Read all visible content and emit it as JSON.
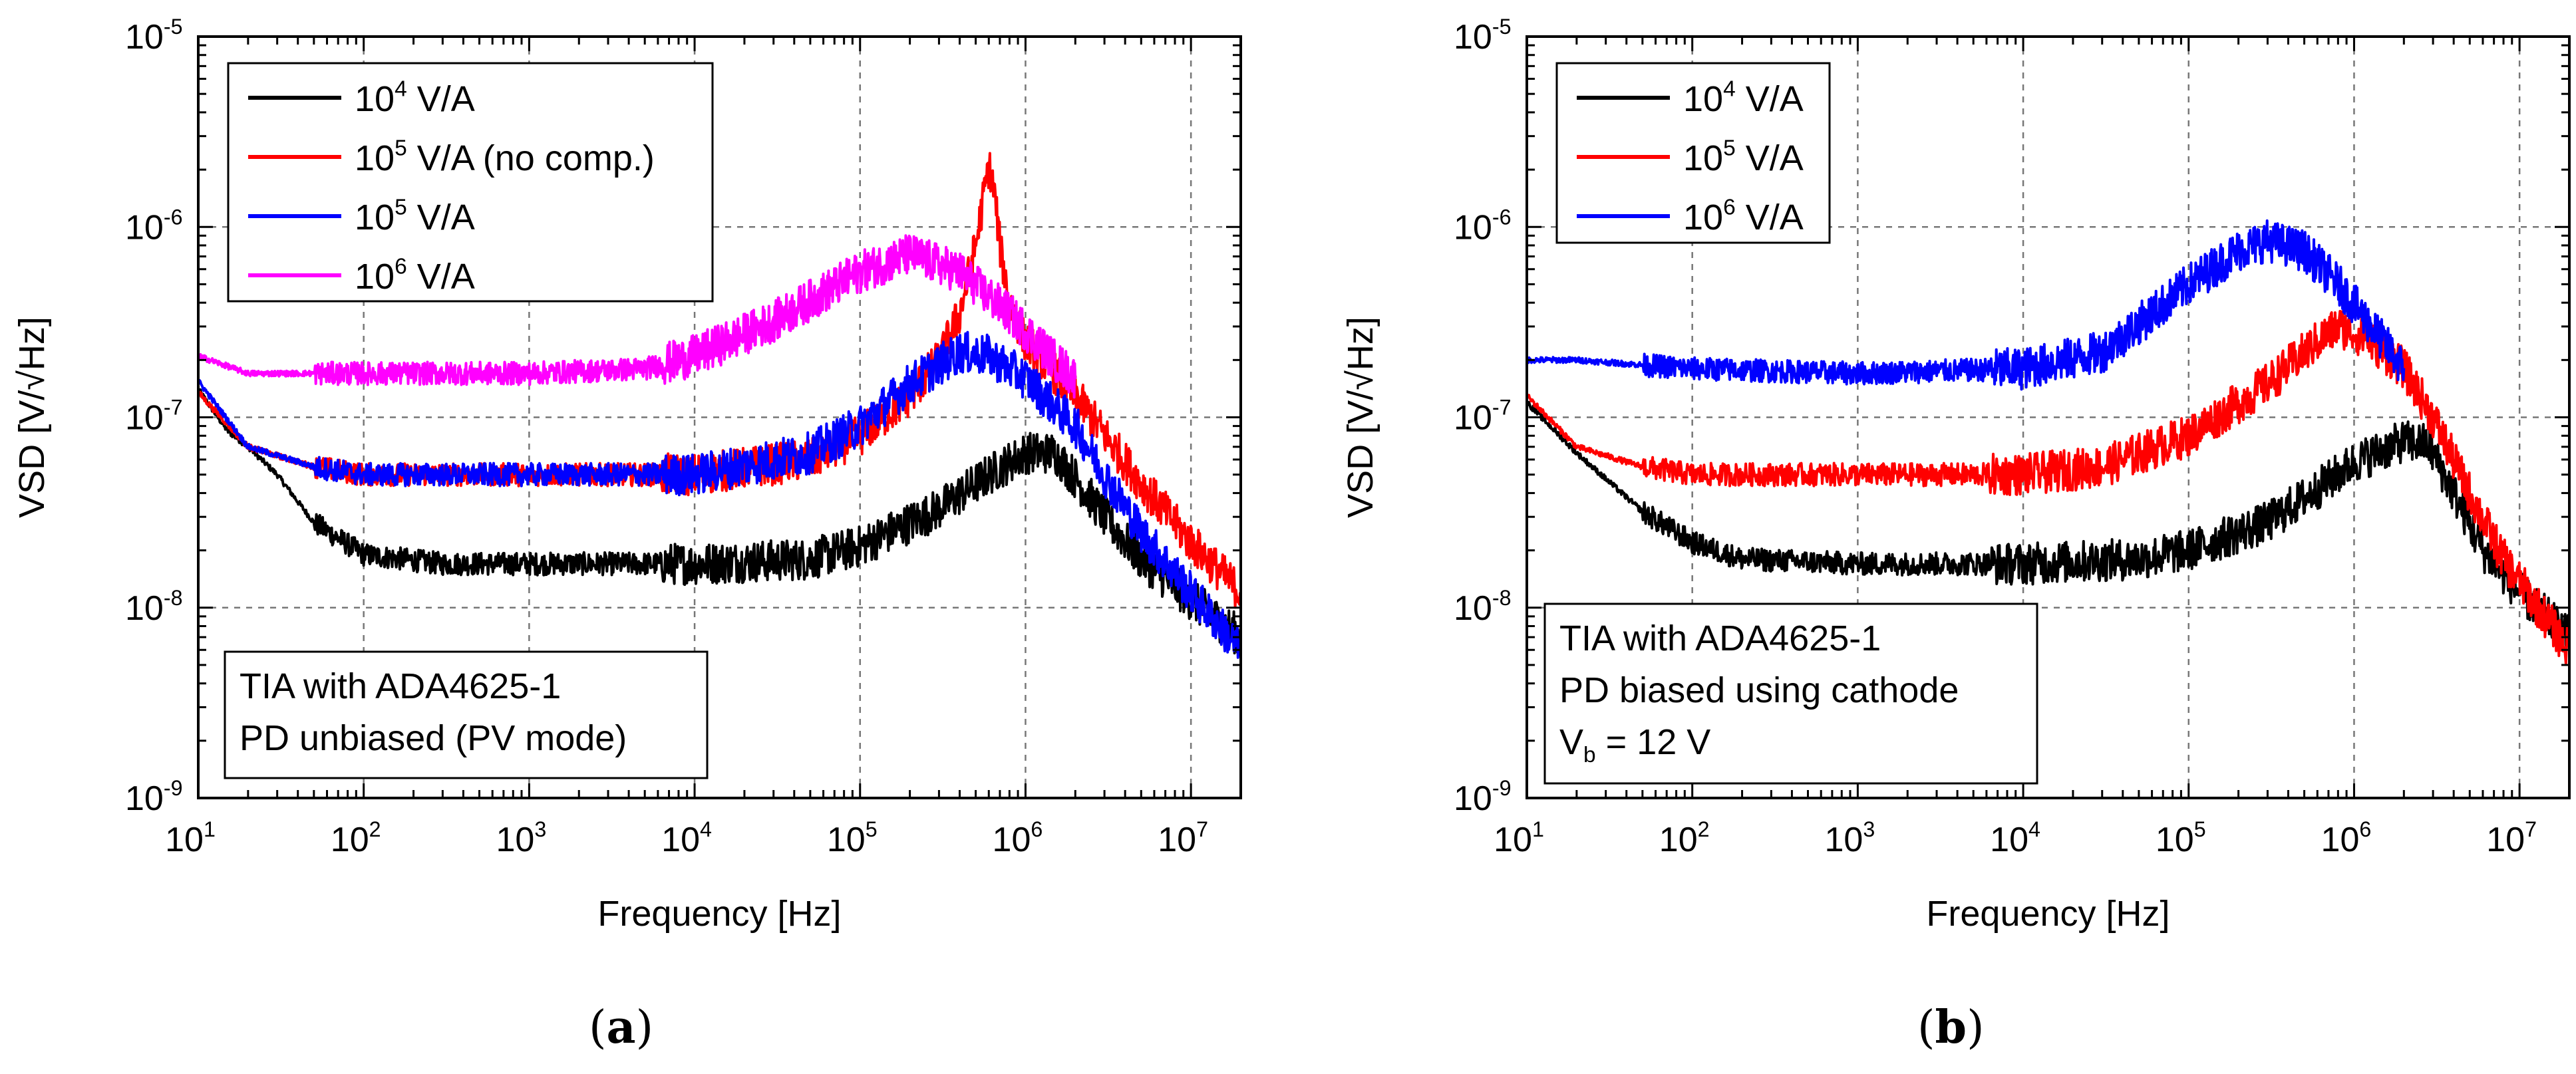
{
  "chart_data": [
    {
      "type": "line",
      "caption": "a",
      "xlabel": "Frequency [Hz]",
      "ylabel": "VSD [V/√Hz]",
      "xscale": "log",
      "yscale": "log",
      "xlim": [
        10,
        20000000
      ],
      "ylim": [
        1e-09,
        1e-05
      ],
      "xticks": [
        {
          "base": "10",
          "exp": "1"
        },
        {
          "base": "10",
          "exp": "2"
        },
        {
          "base": "10",
          "exp": "3"
        },
        {
          "base": "10",
          "exp": "4"
        },
        {
          "base": "10",
          "exp": "5"
        },
        {
          "base": "10",
          "exp": "6"
        },
        {
          "base": "10",
          "exp": "7"
        }
      ],
      "yticks": [
        {
          "base": "10",
          "exp": "-9"
        },
        {
          "base": "10",
          "exp": "-8"
        },
        {
          "base": "10",
          "exp": "-7"
        },
        {
          "base": "10",
          "exp": "-6"
        },
        {
          "base": "10",
          "exp": "-5"
        }
      ],
      "grid": true,
      "legend_position": "top-left",
      "annotation": [
        "TIA with ADA4625-1",
        "PD unbiased (PV mode)"
      ],
      "series": [
        {
          "name": "10^4 V/A",
          "label_base": "10",
          "label_exp": "4",
          "label_rest": " V/A",
          "color": "#000000",
          "points": [
            [
              10,
              1.4e-07
            ],
            [
              15,
              8.5e-08
            ],
            [
              20,
              7e-08
            ],
            [
              30,
              5e-08
            ],
            [
              50,
              2.8e-08
            ],
            [
              100,
              1.9e-08
            ],
            [
              300,
              1.7e-08
            ],
            [
              1000,
              1.7e-08
            ],
            [
              10000,
              1.7e-08
            ],
            [
              50000,
              1.8e-08
            ],
            [
              100000,
              2.1e-08
            ],
            [
              300000,
              3.3e-08
            ],
            [
              600000,
              5e-08
            ],
            [
              1000000,
              6.5e-08
            ],
            [
              1500000,
              6.5e-08
            ],
            [
              2000000,
              4.8e-08
            ],
            [
              3000000,
              3e-08
            ],
            [
              5000000,
              1.8e-08
            ],
            [
              10000000,
              1.1e-08
            ],
            [
              20000000,
              7e-09
            ]
          ]
        },
        {
          "name": "10^5 V/A (no comp.)",
          "label_base": "10",
          "label_exp": "5",
          "label_rest": " V/A (no comp.)",
          "color": "#ff0000",
          "points": [
            [
              10,
              1.35e-07
            ],
            [
              20,
              7e-08
            ],
            [
              50,
              5.5e-08
            ],
            [
              100,
              5e-08
            ],
            [
              1000,
              5e-08
            ],
            [
              10000,
              5e-08
            ],
            [
              50000,
              6e-08
            ],
            [
              100000,
              8e-08
            ],
            [
              200000,
              1.3e-07
            ],
            [
              300000,
              2e-07
            ],
            [
              400000,
              3.5e-07
            ],
            [
              500000,
              8e-07
            ],
            [
              600000,
              2.1e-06
            ],
            [
              650000,
              1.5e-06
            ],
            [
              700000,
              8e-07
            ],
            [
              800000,
              4e-07
            ],
            [
              1000000,
              2.5e-07
            ],
            [
              2000000,
              1.3e-07
            ],
            [
              5000000,
              4.5e-08
            ],
            [
              10000000,
              2.2e-08
            ],
            [
              20000000,
              1.2e-08
            ]
          ]
        },
        {
          "name": "10^5 V/A",
          "label_base": "10",
          "label_exp": "5",
          "label_rest": " V/A",
          "color": "#0000ff",
          "points": [
            [
              10,
              1.55e-07
            ],
            [
              20,
              7e-08
            ],
            [
              50,
              5.5e-08
            ],
            [
              100,
              5e-08
            ],
            [
              1000,
              5e-08
            ],
            [
              10000,
              5e-08
            ],
            [
              50000,
              6.5e-08
            ],
            [
              100000,
              9e-08
            ],
            [
              200000,
              1.5e-07
            ],
            [
              400000,
              2.2e-07
            ],
            [
              600000,
              2.1e-07
            ],
            [
              1000000,
              1.6e-07
            ],
            [
              2000000,
              9e-08
            ],
            [
              3000000,
              5e-08
            ],
            [
              5000000,
              2.5e-08
            ],
            [
              10000000,
              1.2e-08
            ],
            [
              20000000,
              6e-09
            ]
          ]
        },
        {
          "name": "10^6 V/A",
          "label_base": "10",
          "label_exp": "6",
          "label_rest": " V/A",
          "color": "#ff00ff",
          "points": [
            [
              10,
              2.1e-07
            ],
            [
              20,
              1.7e-07
            ],
            [
              100,
              1.7e-07
            ],
            [
              1000,
              1.7e-07
            ],
            [
              5000,
              1.8e-07
            ],
            [
              10000,
              2.1e-07
            ],
            [
              30000,
              3.2e-07
            ],
            [
              100000,
              5.8e-07
            ],
            [
              200000,
              7.2e-07
            ],
            [
              400000,
              5.8e-07
            ],
            [
              800000,
              3.5e-07
            ],
            [
              1500000,
              2e-07
            ],
            [
              2000000,
              1.6e-07
            ]
          ]
        }
      ]
    },
    {
      "type": "line",
      "caption": "b",
      "xlabel": "Frequency [Hz]",
      "ylabel": "VSD [V/√Hz]",
      "xscale": "log",
      "yscale": "log",
      "xlim": [
        10,
        20000000
      ],
      "ylim": [
        1e-09,
        1e-05
      ],
      "xticks": [
        {
          "base": "10",
          "exp": "1"
        },
        {
          "base": "10",
          "exp": "2"
        },
        {
          "base": "10",
          "exp": "3"
        },
        {
          "base": "10",
          "exp": "4"
        },
        {
          "base": "10",
          "exp": "5"
        },
        {
          "base": "10",
          "exp": "6"
        },
        {
          "base": "10",
          "exp": "7"
        }
      ],
      "yticks": [
        {
          "base": "10",
          "exp": "-9"
        },
        {
          "base": "10",
          "exp": "-8"
        },
        {
          "base": "10",
          "exp": "-7"
        },
        {
          "base": "10",
          "exp": "-6"
        },
        {
          "base": "10",
          "exp": "-5"
        }
      ],
      "grid": true,
      "legend_position": "top-left",
      "annotation": [
        "TIA with ADA4625-1",
        "PD biased using cathode",
        "V",
        "b",
        " = 12 V"
      ],
      "series": [
        {
          "name": "10^4 V/A",
          "label_base": "10",
          "label_exp": "4",
          "label_rest": " V/A",
          "color": "#000000",
          "points": [
            [
              10,
              1.2e-07
            ],
            [
              20,
              6.5e-08
            ],
            [
              50,
              3.2e-08
            ],
            [
              100,
              2.2e-08
            ],
            [
              200,
              1.8e-08
            ],
            [
              1000,
              1.7e-08
            ],
            [
              10000,
              1.7e-08
            ],
            [
              50000,
              1.8e-08
            ],
            [
              100000,
              2e-08
            ],
            [
              300000,
              2.8e-08
            ],
            [
              600000,
              4.2e-08
            ],
            [
              1000000,
              5.8e-08
            ],
            [
              2000000,
              7.5e-08
            ],
            [
              2800000,
              7.2e-08
            ],
            [
              4000000,
              4e-08
            ],
            [
              6000000,
              2e-08
            ],
            [
              10000000,
              1.2e-08
            ],
            [
              20000000,
              7e-09
            ]
          ]
        },
        {
          "name": "10^5 V/A",
          "label_base": "10",
          "label_exp": "5",
          "label_rest": " V/A",
          "color": "#ff0000",
          "points": [
            [
              10,
              1.3e-07
            ],
            [
              20,
              7e-08
            ],
            [
              50,
              5.5e-08
            ],
            [
              100,
              5e-08
            ],
            [
              1000,
              5e-08
            ],
            [
              10000,
              5e-08
            ],
            [
              30000,
              5.5e-08
            ],
            [
              100000,
              8e-08
            ],
            [
              300000,
              1.5e-07
            ],
            [
              600000,
              2.5e-07
            ],
            [
              800000,
              3e-07
            ],
            [
              1200000,
              2.6e-07
            ],
            [
              2000000,
              1.8e-07
            ],
            [
              3000000,
              1e-07
            ],
            [
              5000000,
              4e-08
            ],
            [
              8000000,
              1.8e-08
            ],
            [
              12000000,
              1.1e-08
            ],
            [
              20000000,
              6e-09
            ]
          ]
        },
        {
          "name": "10^6 V/A",
          "label_base": "10",
          "label_exp": "6",
          "label_rest": " V/A",
          "color": "#0000ff",
          "points": [
            [
              10,
              2e-07
            ],
            [
              20,
              2e-07
            ],
            [
              100,
              1.8e-07
            ],
            [
              1000,
              1.7e-07
            ],
            [
              10000,
              1.8e-07
            ],
            [
              30000,
              2.2e-07
            ],
            [
              60000,
              3.5e-07
            ],
            [
              100000,
              5e-07
            ],
            [
              200000,
              7.5e-07
            ],
            [
              300000,
              8.5e-07
            ],
            [
              500000,
              7.5e-07
            ],
            [
              800000,
              5e-07
            ],
            [
              1200000,
              3.2e-07
            ],
            [
              2000000,
              1.8e-07
            ]
          ]
        }
      ]
    }
  ]
}
